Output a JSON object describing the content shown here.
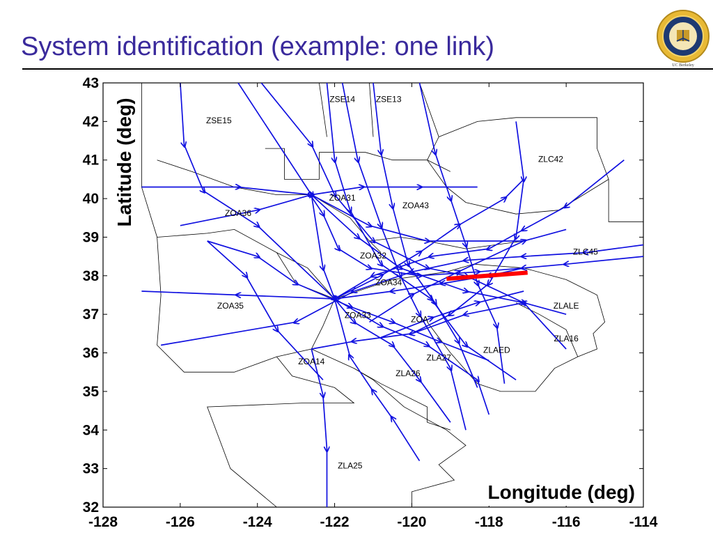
{
  "slide": {
    "title": "System identification (example: one link)",
    "logo_caption": "UC Berkeley"
  },
  "colors": {
    "title": "#3a2a9c",
    "flow_lines": "#1010e0",
    "highlighted_link": "#ff0000",
    "sector_borders": "#000000"
  },
  "chart_data": {
    "type": "map-plot",
    "xlabel": "Longitude (deg)",
    "ylabel": "Latitude (deg)",
    "xlim": [
      -128,
      -114
    ],
    "ylim": [
      32,
      43
    ],
    "x_ticks": [
      "-128",
      "-126",
      "-124",
      "-122",
      "-120",
      "-118",
      "-116",
      "-114"
    ],
    "y_ticks": [
      "32",
      "33",
      "34",
      "35",
      "36",
      "37",
      "38",
      "39",
      "40",
      "41",
      "42",
      "43"
    ],
    "grid": false,
    "sector_labels": [
      {
        "text": "ZSE15",
        "x": -125.0,
        "y": 41.95
      },
      {
        "text": "ZSE14",
        "x": -121.8,
        "y": 42.5
      },
      {
        "text": "ZSE13",
        "x": -120.6,
        "y": 42.5
      },
      {
        "text": "ZLC42",
        "x": -116.4,
        "y": 40.95
      },
      {
        "text": "ZOA31",
        "x": -121.8,
        "y": 39.95
      },
      {
        "text": "ZOA43",
        "x": -119.9,
        "y": 39.75
      },
      {
        "text": "ZOA36",
        "x": -124.5,
        "y": 39.55
      },
      {
        "text": "ZOA32",
        "x": -121.0,
        "y": 38.45
      },
      {
        "text": "ZLC45",
        "x": -115.5,
        "y": 38.55
      },
      {
        "text": "ZOA34",
        "x": -120.6,
        "y": 37.75
      },
      {
        "text": "ZOA35",
        "x": -124.7,
        "y": 37.15
      },
      {
        "text": "ZLALE",
        "x": -116.0,
        "y": 37.15
      },
      {
        "text": "ZOA33",
        "x": -121.4,
        "y": 36.9
      },
      {
        "text": "ZOA",
        "x": -119.8,
        "y": 36.8
      },
      {
        "text": "ZLA16",
        "x": -116.0,
        "y": 36.3
      },
      {
        "text": "ZLAED",
        "x": -117.8,
        "y": 36.0
      },
      {
        "text": "ZOA14",
        "x": -122.6,
        "y": 35.7
      },
      {
        "text": "ZLA27",
        "x": -119.3,
        "y": 35.8
      },
      {
        "text": "ZLA26",
        "x": -120.1,
        "y": 35.4
      },
      {
        "text": "ZLA25",
        "x": -121.6,
        "y": 33.0
      }
    ],
    "highlighted_link": {
      "x": [
        -119.1,
        -117.0
      ],
      "y": [
        37.92,
        38.08
      ]
    },
    "sectors": [
      [
        [
          -127,
          43
        ],
        [
          -127,
          40.3
        ],
        [
          -126.6,
          39
        ],
        [
          -126.5,
          37.5
        ],
        [
          -126.6,
          36.2
        ],
        [
          -125.9,
          35.5
        ],
        [
          -124.6,
          35.5
        ],
        [
          -123.5,
          35.9
        ],
        [
          -122.6,
          36.1
        ],
        [
          -122.3,
          36.7
        ],
        [
          -122.0,
          37.4
        ]
      ],
      [
        [
          -126.6,
          41
        ],
        [
          -125.7,
          40.7
        ],
        [
          -124.6,
          40.3
        ],
        [
          -123.5,
          40.1
        ],
        [
          -122.6,
          40.1
        ],
        [
          -121.6,
          39.5
        ],
        [
          -121.1,
          38.9
        ],
        [
          -120.8,
          38.6
        ]
      ],
      [
        [
          -126.6,
          39
        ],
        [
          -125.3,
          39.1
        ],
        [
          -124.6,
          39.2
        ],
        [
          -123.5,
          38.6
        ],
        [
          -122.7,
          38.2
        ],
        [
          -122.0,
          37.4
        ]
      ],
      [
        [
          -123.5,
          38.6
        ],
        [
          -123.0,
          37.8
        ],
        [
          -122.0,
          37.4
        ],
        [
          -121.1,
          37.7
        ],
        [
          -120.5,
          37.9
        ]
      ],
      [
        [
          -123.8,
          41.3
        ],
        [
          -123.3,
          41.3
        ],
        [
          -123.3,
          40.5
        ],
        [
          -122.4,
          40.5
        ],
        [
          -122.4,
          41.2
        ],
        [
          -121.2,
          41.2
        ],
        [
          -120.5,
          41.0
        ],
        [
          -119.6,
          41.0
        ],
        [
          -119.0,
          40.7
        ]
      ],
      [
        [
          -122.4,
          43
        ],
        [
          -122.2,
          41.6
        ]
      ],
      [
        [
          -121.1,
          43
        ],
        [
          -121.0,
          41.6
        ]
      ],
      [
        [
          -119.8,
          43
        ],
        [
          -119.3,
          41.6
        ],
        [
          -119.6,
          41.0
        ]
      ],
      [
        [
          -119.3,
          41.6
        ],
        [
          -118.3,
          42.0
        ],
        [
          -117.3,
          42.1
        ],
        [
          -115.2,
          42.1
        ],
        [
          -115.2,
          41.3
        ],
        [
          -114.9,
          40.5
        ],
        [
          -114.9,
          39.4
        ],
        [
          -114,
          39.4
        ]
      ],
      [
        [
          -119.6,
          41.0
        ],
        [
          -119.1,
          40.3
        ],
        [
          -118.6,
          39.9
        ],
        [
          -117.3,
          39.6
        ],
        [
          -116.2,
          39.7
        ],
        [
          -114.9,
          40.5
        ]
      ],
      [
        [
          -121.1,
          38.9
        ],
        [
          -120.3,
          39.0
        ],
        [
          -119.6,
          38.9
        ],
        [
          -118.6,
          38.7
        ],
        [
          -117.1,
          38.9
        ]
      ],
      [
        [
          -120.5,
          37.9
        ],
        [
          -119.8,
          38.0
        ],
        [
          -119.1,
          38.1
        ],
        [
          -118.4,
          38.3
        ],
        [
          -117.1,
          38.2
        ],
        [
          -116.0,
          37.9
        ]
      ],
      [
        [
          -116.0,
          37.9
        ],
        [
          -115.2,
          37.5
        ],
        [
          -115.0,
          36.8
        ],
        [
          -115.3,
          36.5
        ],
        [
          -115.2,
          36.1
        ],
        [
          -115.7,
          35.9
        ]
      ],
      [
        [
          -122.6,
          36.1
        ],
        [
          -121.5,
          35.6
        ],
        [
          -120.8,
          35.2
        ],
        [
          -119.6,
          34.6
        ],
        [
          -119.6,
          34.2
        ],
        [
          -119.0,
          34.0
        ]
      ],
      [
        [
          -123.5,
          35.9
        ],
        [
          -123.1,
          35.4
        ],
        [
          -122.0,
          35.1
        ],
        [
          -121.5,
          34.7
        ],
        [
          -122.8,
          34.7
        ],
        [
          -125.3,
          34.6
        ],
        [
          -124.7,
          33.0
        ],
        [
          -123.5,
          32.0
        ]
      ],
      [
        [
          -121.5,
          35.6
        ],
        [
          -121.0,
          35.3
        ],
        [
          -120.2,
          34.6
        ],
        [
          -119.1,
          34.0
        ],
        [
          -118.6,
          33.6
        ],
        [
          -119.3,
          33.1
        ],
        [
          -118.9,
          32.7
        ],
        [
          -120.0,
          32.4
        ],
        [
          -120.0,
          32.0
        ]
      ],
      [
        [
          -119.6,
          36.8
        ],
        [
          -119.0,
          36.0
        ],
        [
          -118.3,
          35.2
        ],
        [
          -117.7,
          35.0
        ],
        [
          -116.8,
          35.0
        ],
        [
          -116.3,
          35.6
        ],
        [
          -115.7,
          35.9
        ]
      ],
      [
        [
          -117.3,
          37.3
        ],
        [
          -116.7,
          37.0
        ],
        [
          -116.0,
          36.6
        ],
        [
          -115.7,
          35.9
        ]
      ]
    ],
    "flow_tracks": [
      [
        [
          -122.6,
          40.05
        ],
        [
          -122.3,
          39.6
        ],
        [
          -121.9,
          38.7
        ],
        [
          -121.1,
          38.2
        ],
        [
          -119.8,
          38.0
        ],
        [
          -118.3,
          38.1
        ],
        [
          -117.1,
          38.2
        ]
      ],
      [
        [
          -126.0,
          43.0
        ],
        [
          -125.9,
          41.4
        ],
        [
          -125.4,
          40.2
        ],
        [
          -124.0,
          39.3
        ],
        [
          -122.0,
          37.4
        ],
        [
          -120.8,
          36.7
        ],
        [
          -119.6,
          36.2
        ],
        [
          -118.3,
          35.3
        ],
        [
          -118.0,
          34.4
        ]
      ],
      [
        [
          -127.0,
          40.3
        ],
        [
          -124.5,
          40.3
        ],
        [
          -122.6,
          40.1
        ],
        [
          -121.1,
          39.3
        ],
        [
          -119.6,
          38.9
        ],
        [
          -117.1,
          38.9
        ]
      ],
      [
        [
          -126.0,
          39.3
        ],
        [
          -124.0,
          39.7
        ],
        [
          -122.6,
          40.1
        ],
        [
          -121.3,
          40.3
        ],
        [
          -119.8,
          40.3
        ],
        [
          -118.3,
          40.3
        ]
      ],
      [
        [
          -124.5,
          43.0
        ],
        [
          -122.6,
          40.1
        ],
        [
          -122.3,
          38.2
        ],
        [
          -122.0,
          37.4
        ],
        [
          -121.5,
          36.8
        ],
        [
          -120.5,
          36.2
        ],
        [
          -119.8,
          35.3
        ],
        [
          -119.0,
          34.2
        ]
      ],
      [
        [
          -123.9,
          43.0
        ],
        [
          -122.6,
          41.4
        ],
        [
          -122.0,
          40.1
        ],
        [
          -121.0,
          38.9
        ],
        [
          -119.6,
          38.2
        ],
        [
          -118.6,
          38.0
        ],
        [
          -117.1,
          37.3
        ]
      ],
      [
        [
          -122.2,
          43.0
        ],
        [
          -122.0,
          41.0
        ],
        [
          -121.6,
          39.7
        ],
        [
          -120.8,
          38.3
        ],
        [
          -119.5,
          37.4
        ],
        [
          -118.6,
          36.2
        ],
        [
          -117.3,
          35.3
        ]
      ],
      [
        [
          -121.8,
          43.0
        ],
        [
          -121.4,
          41.0
        ],
        [
          -120.8,
          39.3
        ],
        [
          -120.3,
          38.0
        ],
        [
          -119.8,
          37.0
        ],
        [
          -119.0,
          35.6
        ],
        [
          -118.6,
          34.0
        ]
      ],
      [
        [
          -121.0,
          43.0
        ],
        [
          -120.8,
          41.2
        ],
        [
          -120.5,
          39.8
        ],
        [
          -120.1,
          38.3
        ],
        [
          -119.4,
          37.3
        ],
        [
          -118.8,
          36.3
        ],
        [
          -118.3,
          35.1
        ]
      ],
      [
        [
          -119.8,
          43.0
        ],
        [
          -119.4,
          41.2
        ],
        [
          -119.0,
          40.0
        ],
        [
          -118.6,
          38.8
        ],
        [
          -118.3,
          37.8
        ],
        [
          -117.8,
          36.7
        ],
        [
          -117.6,
          35.2
        ]
      ],
      [
        [
          -114.0,
          38.5
        ],
        [
          -116.0,
          38.3
        ],
        [
          -117.1,
          38.2
        ],
        [
          -118.0,
          38.0
        ],
        [
          -119.2,
          37.8
        ],
        [
          -120.5,
          37.6
        ],
        [
          -122.0,
          37.4
        ],
        [
          -124.5,
          37.5
        ],
        [
          -127.0,
          37.6
        ]
      ],
      [
        [
          -114.0,
          38.8
        ],
        [
          -115.5,
          38.6
        ],
        [
          -117.1,
          38.5
        ],
        [
          -118.6,
          38.4
        ],
        [
          -120.0,
          38.1
        ],
        [
          -121.5,
          37.6
        ],
        [
          -123.0,
          36.8
        ],
        [
          -126.5,
          36.2
        ]
      ],
      [
        [
          -114.5,
          41.0
        ],
        [
          -116.0,
          39.8
        ],
        [
          -117.1,
          39.2
        ],
        [
          -118.0,
          38.7
        ],
        [
          -119.5,
          38.5
        ],
        [
          -121.0,
          38.0
        ],
        [
          -122.0,
          37.4
        ]
      ],
      [
        [
          -117.3,
          42.0
        ],
        [
          -117.1,
          40.5
        ],
        [
          -117.3,
          39.0
        ],
        [
          -118.0,
          37.8
        ],
        [
          -119.0,
          37.0
        ],
        [
          -120.0,
          36.5
        ]
      ],
      [
        [
          -116.0,
          36.1
        ],
        [
          -117.1,
          37.3
        ],
        [
          -118.6,
          37.0
        ],
        [
          -120.0,
          36.5
        ],
        [
          -121.5,
          36.3
        ],
        [
          -122.6,
          36.1
        ]
      ],
      [
        [
          -122.6,
          36.1
        ],
        [
          -122.3,
          34.9
        ],
        [
          -122.2,
          33.5
        ],
        [
          -122.2,
          32.0
        ]
      ],
      [
        [
          -119.8,
          33.2
        ],
        [
          -120.5,
          34.3
        ],
        [
          -121.0,
          35.0
        ],
        [
          -121.6,
          35.9
        ],
        [
          -122.0,
          37.4
        ]
      ],
      [
        [
          -125.3,
          38.9
        ],
        [
          -124.0,
          38.5
        ],
        [
          -123.0,
          37.8
        ],
        [
          -121.6,
          37.2
        ],
        [
          -120.5,
          36.8
        ],
        [
          -119.3,
          36.3
        ],
        [
          -118.0,
          35.8
        ]
      ],
      [
        [
          -125.3,
          38.9
        ],
        [
          -124.3,
          38.0
        ],
        [
          -123.5,
          36.6
        ],
        [
          -122.3,
          35.3
        ]
      ],
      [
        [
          -122.6,
          40.1
        ],
        [
          -121.4,
          39.0
        ],
        [
          -120.3,
          38.2
        ],
        [
          -118.6,
          37.6
        ],
        [
          -117.1,
          37.3
        ],
        [
          -116.0,
          37.0
        ]
      ],
      [
        [
          -122.0,
          37.4
        ],
        [
          -120.8,
          38.0
        ],
        [
          -119.8,
          38.6
        ],
        [
          -118.8,
          39.3
        ],
        [
          -117.6,
          40.0
        ],
        [
          -117.1,
          40.5
        ]
      ],
      [
        [
          -121.1,
          36.8
        ],
        [
          -120.0,
          37.5
        ],
        [
          -118.8,
          38.1
        ],
        [
          -117.1,
          38.9
        ],
        [
          -116.0,
          39.2
        ]
      ],
      [
        [
          -120.8,
          36.4
        ],
        [
          -119.5,
          36.9
        ],
        [
          -118.3,
          37.3
        ],
        [
          -117.1,
          37.6
        ]
      ]
    ]
  }
}
